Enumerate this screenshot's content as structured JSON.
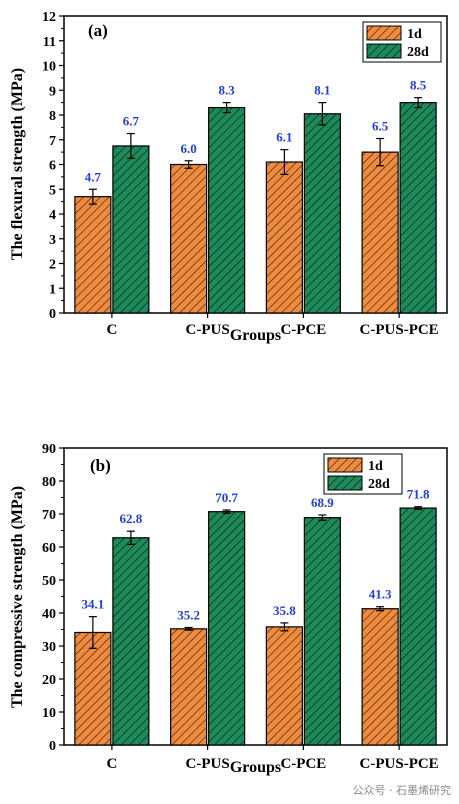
{
  "colors": {
    "d1": "#f08a3c",
    "d28": "#1d8a5a",
    "label": "#1f3fd6"
  },
  "chart_data": [
    {
      "type": "bar",
      "panel_label": "(a)",
      "categories": [
        "C",
        "C-PUS",
        "C-PCE",
        "C-PUS-PCE"
      ],
      "xlabel": "Groups",
      "ylabel": "The flexural strength (MPa)",
      "ylim": [
        0,
        12
      ],
      "yticks": [
        "0",
        "1",
        "2",
        "3",
        "4",
        "5",
        "6",
        "7",
        "8",
        "9",
        "10",
        "11",
        "12"
      ],
      "legend_position": "top-right",
      "series": [
        {
          "name": "1d",
          "values": [
            4.7,
            6.0,
            6.1,
            6.5
          ],
          "errors": [
            0.3,
            0.15,
            0.5,
            0.55
          ],
          "labels": [
            "4.7",
            "6.0",
            "6.1",
            "6.5"
          ]
        },
        {
          "name": "28d",
          "values": [
            6.75,
            8.3,
            8.05,
            8.5
          ],
          "errors": [
            0.5,
            0.2,
            0.45,
            0.2
          ],
          "labels": [
            "6.7",
            "8.3",
            "8.1",
            "8.5"
          ]
        }
      ]
    },
    {
      "type": "bar",
      "panel_label": "(b)",
      "categories": [
        "C",
        "C-PUS",
        "C-PCE",
        "C-PUS-PCE"
      ],
      "xlabel": "Groups",
      "ylabel": "The compressive strength (MPa)",
      "ylim": [
        0,
        90
      ],
      "yticks": [
        "0",
        "10",
        "20",
        "30",
        "40",
        "50",
        "60",
        "70",
        "80",
        "90"
      ],
      "legend_position": "top-center",
      "series": [
        {
          "name": "1d",
          "values": [
            34.1,
            35.2,
            35.8,
            41.3
          ],
          "errors": [
            4.8,
            0.4,
            1.2,
            0.6
          ],
          "labels": [
            "34.1",
            "35.2",
            "35.8",
            "41.3"
          ]
        },
        {
          "name": "28d",
          "values": [
            62.8,
            70.7,
            68.9,
            71.8
          ],
          "errors": [
            2.0,
            0.5,
            0.8,
            0.4
          ],
          "labels": [
            "62.8",
            "70.7",
            "68.9",
            "71.8"
          ]
        }
      ]
    }
  ],
  "watermark": "公众号 · 石墨烯研究"
}
